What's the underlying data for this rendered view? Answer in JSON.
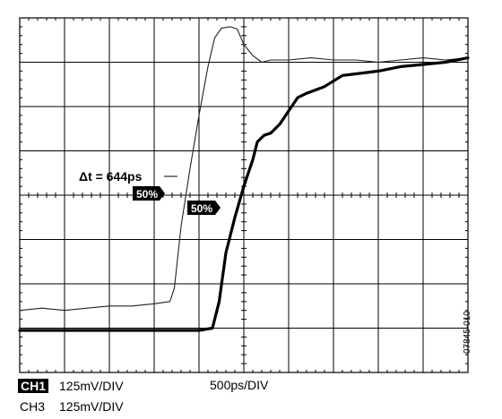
{
  "chart_data": {
    "type": "line",
    "title": "",
    "xlabel": "500ps/DIV",
    "ylabel": "",
    "grid": true,
    "x_divisions": 10,
    "y_divisions": 8,
    "xlim": [
      0,
      10
    ],
    "ylim": [
      0,
      8
    ],
    "series": [
      {
        "channel": "CH3",
        "style": "thin",
        "color": "#222222",
        "points": [
          [
            0,
            1.4
          ],
          [
            0.5,
            1.45
          ],
          [
            1,
            1.4
          ],
          [
            1.5,
            1.45
          ],
          [
            2,
            1.5
          ],
          [
            2.5,
            1.5
          ],
          [
            3,
            1.55
          ],
          [
            3.35,
            1.6
          ],
          [
            3.45,
            1.9
          ],
          [
            3.6,
            3.3
          ],
          [
            3.8,
            4.6
          ],
          [
            4.0,
            5.8
          ],
          [
            4.2,
            6.9
          ],
          [
            4.35,
            7.55
          ],
          [
            4.5,
            7.77
          ],
          [
            4.7,
            7.8
          ],
          [
            4.85,
            7.75
          ],
          [
            5.0,
            7.4
          ],
          [
            5.2,
            7.15
          ],
          [
            5.4,
            7.0
          ],
          [
            5.6,
            7.05
          ],
          [
            6.0,
            7.05
          ],
          [
            6.5,
            7.1
          ],
          [
            7,
            7.05
          ],
          [
            7.5,
            7.05
          ],
          [
            8,
            7.0
          ],
          [
            8.5,
            7.05
          ],
          [
            9,
            7.1
          ],
          [
            9.5,
            7.05
          ],
          [
            10,
            7.1
          ]
        ]
      },
      {
        "channel": "CH1",
        "style": "thick",
        "color": "#000000",
        "points": [
          [
            0,
            0.95
          ],
          [
            0.5,
            0.95
          ],
          [
            1,
            0.95
          ],
          [
            1.5,
            0.95
          ],
          [
            2,
            0.95
          ],
          [
            2.5,
            0.95
          ],
          [
            3,
            0.95
          ],
          [
            3.5,
            0.95
          ],
          [
            4.0,
            0.95
          ],
          [
            4.3,
            1.0
          ],
          [
            4.45,
            1.6
          ],
          [
            4.6,
            2.7
          ],
          [
            4.8,
            3.5
          ],
          [
            5.0,
            4.2
          ],
          [
            5.2,
            4.8
          ],
          [
            5.3,
            5.2
          ],
          [
            5.45,
            5.35
          ],
          [
            5.6,
            5.4
          ],
          [
            5.8,
            5.6
          ],
          [
            6.0,
            5.9
          ],
          [
            6.2,
            6.2
          ],
          [
            6.4,
            6.3
          ],
          [
            6.8,
            6.45
          ],
          [
            7.2,
            6.7
          ],
          [
            7.6,
            6.75
          ],
          [
            8,
            6.8
          ],
          [
            8.5,
            6.9
          ],
          [
            9,
            6.95
          ],
          [
            9.5,
            7.0
          ],
          [
            10,
            7.1
          ]
        ]
      }
    ],
    "annotations": {
      "delta_t": "Δt = 644ps",
      "marker_ch3": "50%",
      "marker_ch1": "50%"
    },
    "figure_code": "07845-010"
  },
  "legend": {
    "ch1_tag": "CH1",
    "ch1_scale": "125mV/DIV",
    "ch3_tag": "CH3",
    "ch3_scale": "125mV/DIV"
  }
}
